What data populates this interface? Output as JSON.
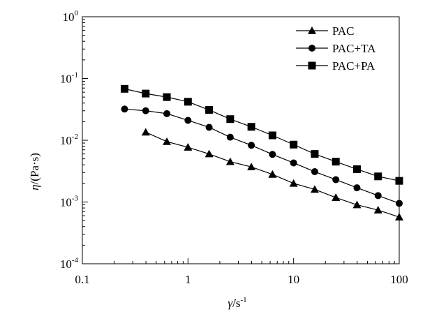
{
  "chart_data": {
    "type": "line",
    "title": "",
    "xlabel": {
      "symbol": "γ̇",
      "unit": "/s",
      "exp": "-1"
    },
    "ylabel": {
      "symbol": "η",
      "unit": "/(Pa·s)"
    },
    "xscale": "log",
    "yscale": "log",
    "xlim": [
      0.1,
      100
    ],
    "ylim": [
      0.0001,
      1
    ],
    "x_ticks": [
      {
        "value": 0.1,
        "label": "0.1"
      },
      {
        "value": 1,
        "label": "1"
      },
      {
        "value": 10,
        "label": "10"
      },
      {
        "value": 100,
        "label": "100"
      }
    ],
    "y_ticks": [
      {
        "value": 0.0001,
        "base": "10",
        "exp": "-4"
      },
      {
        "value": 0.001,
        "base": "10",
        "exp": "-3"
      },
      {
        "value": 0.01,
        "base": "10",
        "exp": "-2"
      },
      {
        "value": 0.1,
        "base": "10",
        "exp": "-1"
      },
      {
        "value": 1,
        "base": "10",
        "exp": "0"
      }
    ],
    "grid": false,
    "legend_position": "top-right",
    "series": [
      {
        "name": "PAC",
        "marker": "triangle",
        "x": [
          0.398,
          0.631,
          1.0,
          1.585,
          2.512,
          3.981,
          6.31,
          10.0,
          15.85,
          25.12,
          39.81,
          63.1,
          100.0
        ],
        "y": [
          0.0135,
          0.0095,
          0.0077,
          0.006,
          0.0045,
          0.0037,
          0.0028,
          0.002,
          0.0016,
          0.00118,
          0.0009,
          0.00074,
          0.00057
        ]
      },
      {
        "name": "PAC+TA",
        "marker": "circle",
        "x": [
          0.251,
          0.398,
          0.631,
          1.0,
          1.585,
          2.512,
          3.981,
          6.31,
          10.0,
          15.85,
          25.12,
          39.81,
          63.1,
          100.0
        ],
        "y": [
          0.032,
          0.03,
          0.027,
          0.021,
          0.0162,
          0.0112,
          0.0083,
          0.0059,
          0.0043,
          0.0031,
          0.0023,
          0.0017,
          0.00127,
          0.00095
        ]
      },
      {
        "name": "PAC+PA",
        "marker": "square",
        "x": [
          0.251,
          0.398,
          0.631,
          1.0,
          1.585,
          2.512,
          3.981,
          6.31,
          10.0,
          15.85,
          25.12,
          39.81,
          63.1,
          100.0
        ],
        "y": [
          0.068,
          0.057,
          0.05,
          0.042,
          0.031,
          0.022,
          0.0165,
          0.012,
          0.0085,
          0.006,
          0.0045,
          0.0034,
          0.0026,
          0.0022
        ]
      }
    ],
    "colors": {
      "line": "#000000",
      "marker": "#000000"
    }
  }
}
